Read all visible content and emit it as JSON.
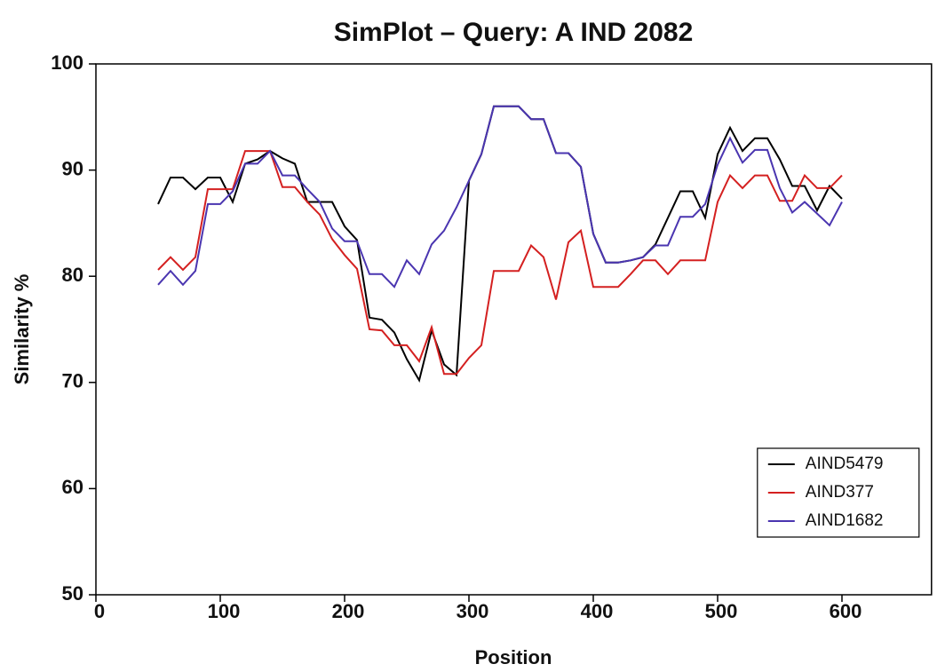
{
  "chart_data": {
    "type": "line",
    "title": "SimPlot – Query: A IND 2082",
    "x_label": "Position",
    "y_label": "Similarity %",
    "x": [
      50,
      60,
      70,
      80,
      90,
      100,
      110,
      120,
      130,
      140,
      150,
      160,
      170,
      180,
      190,
      200,
      210,
      220,
      230,
      240,
      250,
      260,
      270,
      280,
      290,
      300,
      310,
      320,
      330,
      340,
      350,
      360,
      370,
      380,
      390,
      400,
      410,
      420,
      430,
      440,
      450,
      460,
      470,
      480,
      490,
      500,
      510,
      520,
      530,
      540,
      550,
      560,
      570,
      580,
      590,
      600
    ],
    "series": [
      {
        "name": "AIND5479",
        "color": "#000000",
        "values": [
          86.8,
          89.3,
          89.3,
          88.2,
          89.3,
          89.3,
          87.0,
          90.6,
          91.0,
          91.8,
          91.1,
          90.6,
          87.0,
          87.0,
          87.0,
          84.7,
          83.4,
          76.1,
          75.9,
          74.7,
          72.2,
          70.2,
          74.9,
          71.7,
          70.7,
          89.0,
          91.5,
          96.0,
          96.0,
          96.0,
          94.8,
          94.8,
          91.6,
          91.6,
          90.3,
          84.0,
          81.3,
          81.3,
          81.5,
          81.8,
          83.0,
          85.5,
          88.0,
          88.0,
          85.5,
          91.5,
          94.0,
          91.8,
          93.0,
          93.0,
          91.0,
          88.5,
          88.5,
          86.2,
          88.5,
          87.3
        ]
      },
      {
        "name": "AIND377",
        "color": "#d42020",
        "values": [
          80.6,
          81.8,
          80.6,
          81.8,
          88.2,
          88.2,
          88.2,
          91.8,
          91.8,
          91.8,
          88.4,
          88.4,
          87.0,
          85.8,
          83.5,
          82.0,
          80.7,
          75.0,
          74.9,
          73.5,
          73.5,
          72.0,
          75.2,
          70.8,
          70.8,
          72.3,
          73.5,
          80.5,
          80.5,
          80.5,
          82.9,
          81.8,
          77.8,
          83.2,
          84.3,
          79.0,
          79.0,
          79.0,
          80.2,
          81.5,
          81.5,
          80.2,
          81.5,
          81.5,
          81.5,
          87.0,
          89.5,
          88.3,
          89.5,
          89.5,
          87.1,
          87.1,
          89.5,
          88.3,
          88.3,
          89.5
        ]
      },
      {
        "name": "AIND1682",
        "color": "#4a35b0",
        "values": [
          79.2,
          80.5,
          79.2,
          80.5,
          86.8,
          86.8,
          88.0,
          90.6,
          90.6,
          91.8,
          89.5,
          89.5,
          88.2,
          87.0,
          84.5,
          83.3,
          83.3,
          80.2,
          80.2,
          79.0,
          81.5,
          80.2,
          83.0,
          84.3,
          86.5,
          89.0,
          91.5,
          96.0,
          96.0,
          96.0,
          94.8,
          94.8,
          91.6,
          91.6,
          90.3,
          84.0,
          81.3,
          81.3,
          81.5,
          81.8,
          82.9,
          82.9,
          85.6,
          85.6,
          86.8,
          90.5,
          93.0,
          90.7,
          91.9,
          91.9,
          88.3,
          86.0,
          87.0,
          85.9,
          84.8,
          87.0
        ]
      }
    ],
    "xlim": [
      0,
      672
    ],
    "ylim": [
      50,
      100
    ],
    "xticks": [
      0,
      100,
      200,
      300,
      400,
      500,
      600
    ],
    "yticks": [
      50,
      60,
      70,
      80,
      90,
      100
    ],
    "legend": "lower right"
  }
}
